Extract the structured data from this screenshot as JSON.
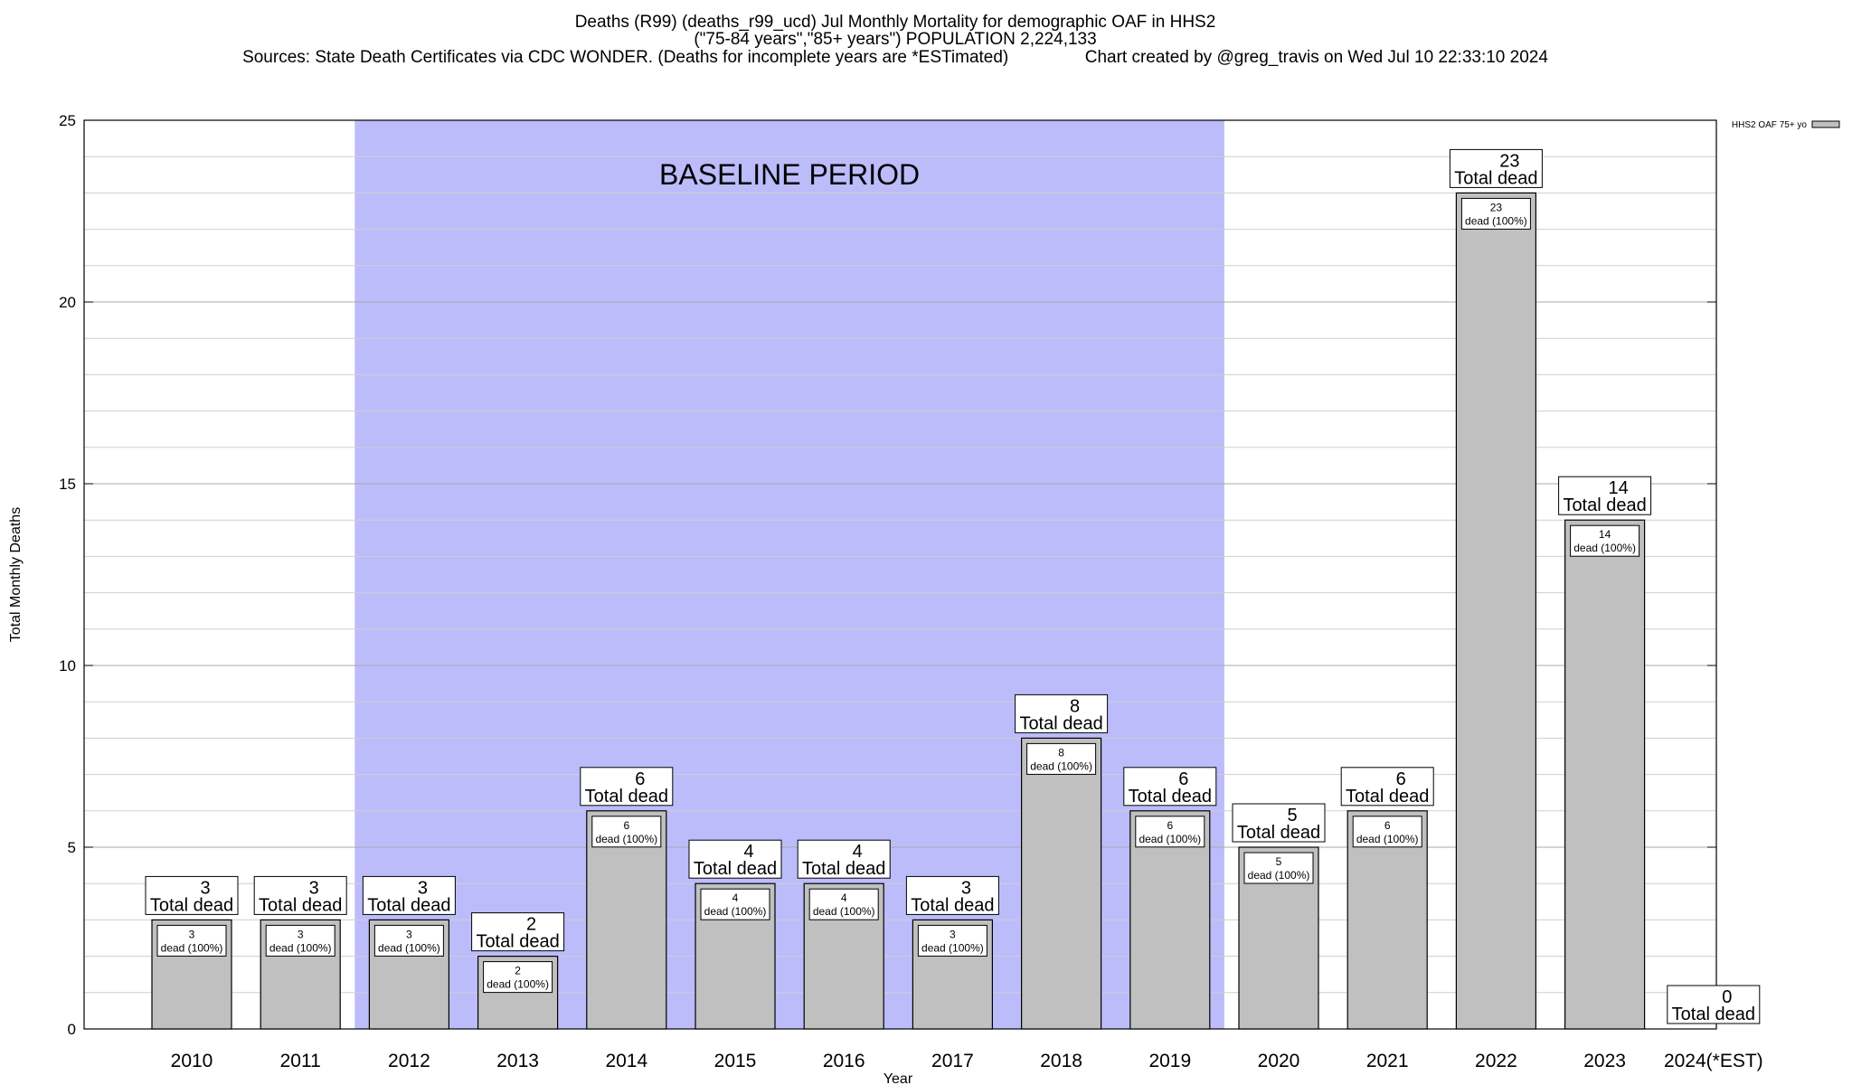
{
  "chart_data": {
    "type": "bar",
    "title_lines": [
      "Deaths (R99) (deaths_r99_ucd) Jul Monthly Mortality for demographic OAF in HHS2",
      "(\"75-84 years\",\"85+ years\") POPULATION 2,224,133",
      "Sources: State Death Certificates via CDC WONDER. (Deaths for incomplete years are *ESTimated)                Chart created by @greg_travis on Wed Jul 10 22:33:10 2024"
    ],
    "xlabel": "Year",
    "ylabel": "Total Monthly Deaths",
    "ylim": [
      0,
      25
    ],
    "y_ticks": [
      0,
      5,
      10,
      15,
      20,
      25
    ],
    "grid": true,
    "categories": [
      "2010",
      "2011",
      "2012",
      "2013",
      "2014",
      "2015",
      "2016",
      "2017",
      "2018",
      "2019",
      "2020",
      "2021",
      "2022",
      "2023",
      "2024(*EST)"
    ],
    "series": [
      {
        "name": "HHS2 OAF 75+ yo",
        "color": "#c0c0c0",
        "values": [
          3,
          3,
          3,
          2,
          6,
          4,
          4,
          3,
          8,
          6,
          5,
          6,
          23,
          14,
          0
        ]
      }
    ],
    "bar_label_suffix": "Total dead",
    "inner_label_suffix": "dead (100%)",
    "baseline_period": {
      "label": "BASELINE PERIOD",
      "start": "2012",
      "end": "2019",
      "color": "#bcbcfb"
    },
    "legend_position": "top-right"
  }
}
